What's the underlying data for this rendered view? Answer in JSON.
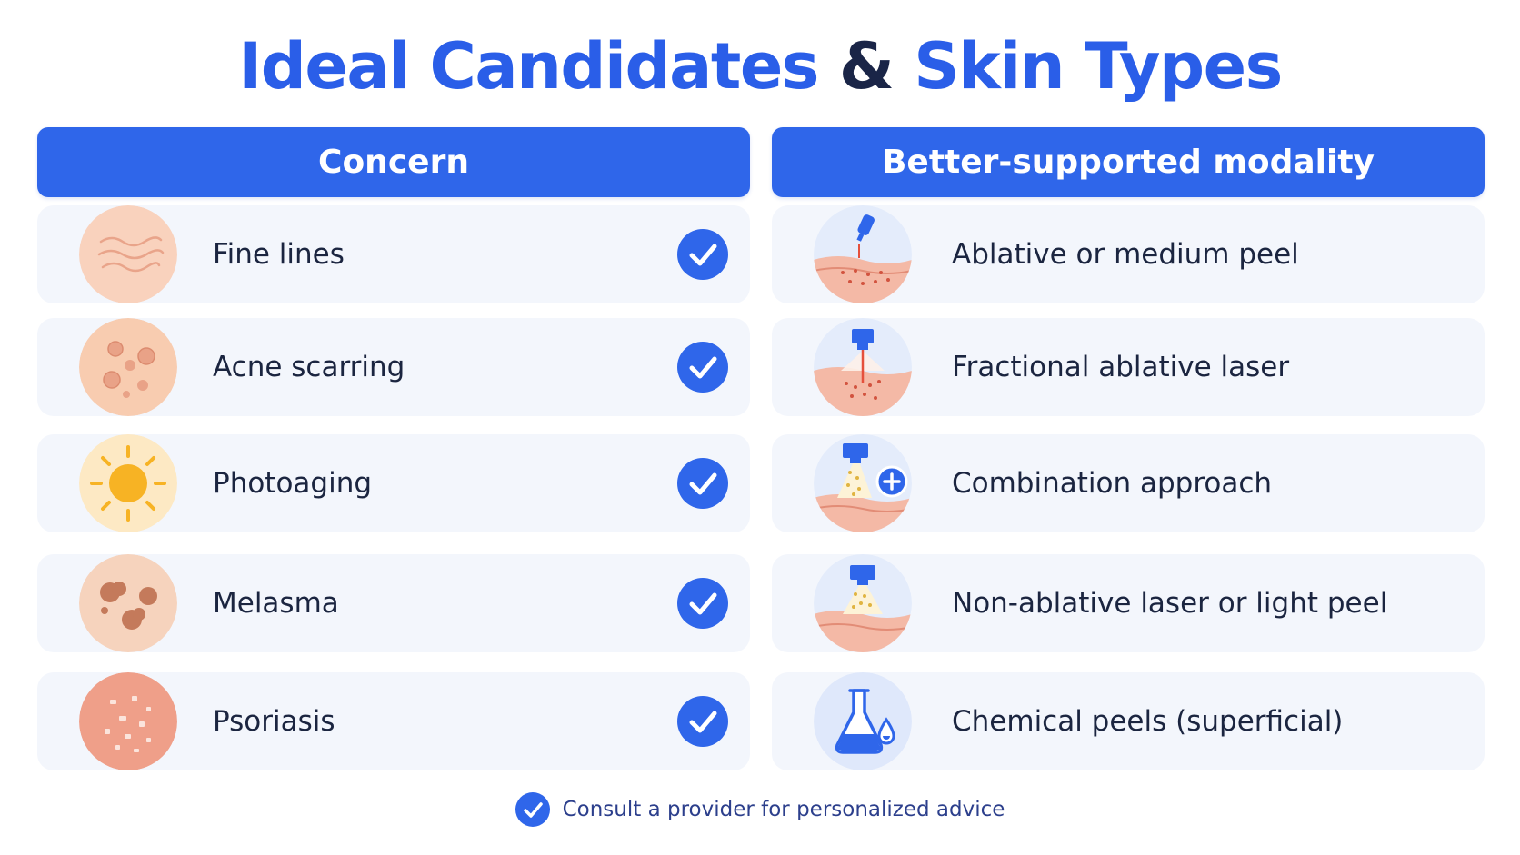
{
  "title": {
    "part1": "Ideal Candidates",
    "amp": "&",
    "part2": "Skin Types"
  },
  "columns": {
    "left_header": "Concern",
    "right_header": "Better-supported modality"
  },
  "concerns": [
    {
      "label": "Fine lines",
      "icon": "fine-lines-icon",
      "checked": true
    },
    {
      "label": "Acne scarring",
      "icon": "acne-scarring-icon",
      "checked": true
    },
    {
      "label": "Photoaging",
      "icon": "sun-icon",
      "checked": true
    },
    {
      "label": "Melasma",
      "icon": "melasma-spots-icon",
      "checked": true
    },
    {
      "label": "Psoriasis",
      "icon": "psoriasis-icon",
      "checked": true
    }
  ],
  "modalities": [
    {
      "label": "Ablative or medium peel",
      "icon": "ablative-peel-icon"
    },
    {
      "label": "Fractional ablative laser",
      "icon": "fractional-laser-icon"
    },
    {
      "label": "Combination approach",
      "icon": "combination-icon"
    },
    {
      "label": "Non-ablative laser or light peel",
      "icon": "non-ablative-laser-icon"
    },
    {
      "label": "Chemical peels (superficial)",
      "icon": "flask-icon"
    }
  ],
  "footer": {
    "text": "Consult a provider for personalized advice",
    "icon": "check-circle-icon"
  },
  "colors": {
    "primary": "#2f66ea",
    "title_blue": "#2a5ee8",
    "title_dark": "#1a2547",
    "row_bg": "#f3f6fc"
  }
}
